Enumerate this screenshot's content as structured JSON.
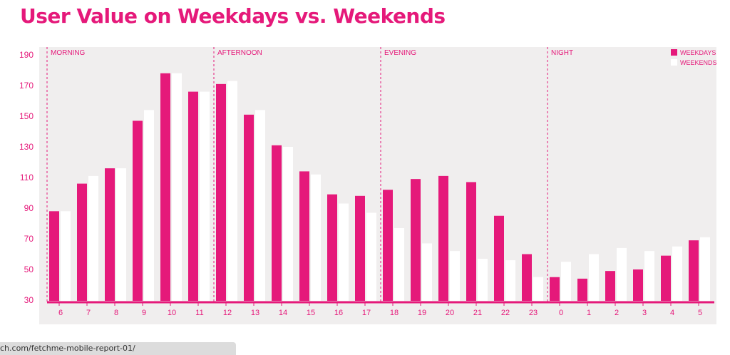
{
  "page_title": "User Value on Weekdays vs. Weekends",
  "status_url": "ch.com/fetchme-mobile-report-01/",
  "colors": {
    "accent": "#e5197a",
    "weekdays": "#e5197a",
    "weekends": "#ffffff",
    "plot_background": "#f0eeee"
  },
  "chart_data": {
    "type": "bar",
    "title": "User Value on Weekdays vs. Weekends",
    "xlabel": "",
    "ylabel": "",
    "ylim": [
      30,
      190
    ],
    "yticks": [
      30,
      50,
      70,
      90,
      110,
      130,
      150,
      170,
      190
    ],
    "grid": false,
    "legend_position": "top-right",
    "categories": [
      "6",
      "7",
      "8",
      "9",
      "10",
      "11",
      "12",
      "13",
      "14",
      "15",
      "16",
      "17",
      "18",
      "19",
      "20",
      "21",
      "22",
      "23",
      "0",
      "1",
      "2",
      "3",
      "4",
      "5"
    ],
    "series": [
      {
        "name": "WEEKDAYS",
        "color": "#e5197a",
        "values": [
          88,
          106,
          116,
          147,
          178,
          166,
          171,
          151,
          131,
          114,
          99,
          98,
          102,
          109,
          111,
          107,
          85,
          60,
          45,
          44,
          49,
          50,
          59,
          69
        ]
      },
      {
        "name": "WEEKENDS",
        "color": "#ffffff",
        "values": [
          88,
          111,
          116,
          154,
          178,
          166,
          173,
          154,
          130,
          112,
          93,
          87,
          77,
          67,
          62,
          57,
          56,
          45,
          55,
          60,
          64,
          62,
          65,
          71
        ]
      }
    ],
    "sections": [
      {
        "label": "MORNING",
        "start_index": 0
      },
      {
        "label": "AFTERNOON",
        "start_index": 6
      },
      {
        "label": "EVENING",
        "start_index": 12
      },
      {
        "label": "NIGHT",
        "start_index": 18
      }
    ]
  }
}
